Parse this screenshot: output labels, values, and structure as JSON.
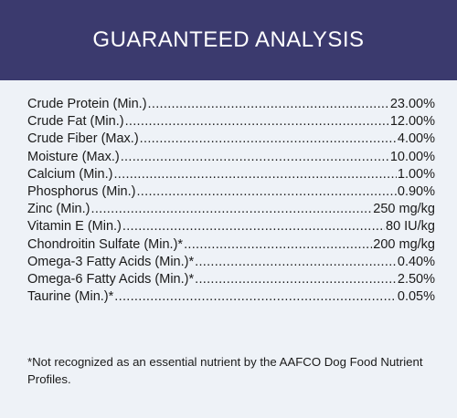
{
  "header": {
    "title": "GUARANTEED ANALYSIS"
  },
  "colors": {
    "header_bg": "#3b3a6e",
    "panel_bg": "#eef2f7",
    "text": "#1a1a1a"
  },
  "nutrients": [
    {
      "label": "Crude Protein (Min.)",
      "value": "23.00%"
    },
    {
      "label": "Crude Fat (Min.)",
      "value": "12.00%"
    },
    {
      "label": "Crude Fiber (Max.)",
      "value": "4.00%"
    },
    {
      "label": "Moisture (Max.)",
      "value": "10.00%"
    },
    {
      "label": "Calcium (Min.)",
      "value": "1.00%"
    },
    {
      "label": "Phosphorus (Min.)",
      "value": "0.90%"
    },
    {
      "label": "Zinc (Min.)",
      "value": "250 mg/kg"
    },
    {
      "label": "Vitamin E (Min.)",
      "value": "80 IU/kg"
    },
    {
      "label": "Chondroitin Sulfate (Min.)*",
      "value": "200 mg/kg"
    },
    {
      "label": "Omega-3 Fatty Acids (Min.)*",
      "value": "0.40%"
    },
    {
      "label": "Omega-6 Fatty Acids (Min.)*",
      "value": "2.50%"
    },
    {
      "label": "Taurine (Min.)*",
      "value": "0.05%"
    }
  ],
  "footnote": "*Not recognized as an essential nutrient by the AAFCO Dog Food Nutrient Profiles."
}
